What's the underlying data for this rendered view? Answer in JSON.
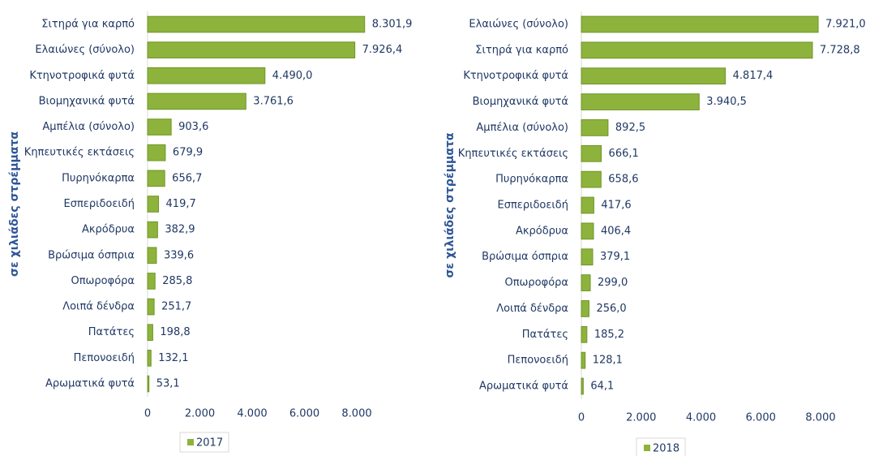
{
  "chart_data": [
    {
      "type": "bar",
      "y_label": "σε χιλιάδες στρέμματα",
      "categories": [
        "Σιτηρά για καρπό",
        "Ελαιώνες (σύνολο)",
        "Κτηνοτροφικά φυτά",
        "Βιομηχανικά φυτά",
        "Αμπέλια  (σύνολο)",
        "Κηπευτικές εκτάσεις",
        "Πυρηνόκαρπα",
        "Εσπεριδοειδή",
        "Ακρόδρυα",
        "Βρώσιμα όσπρια",
        "Οπωροφόρα",
        "Λοιπά δένδρα",
        "Πατάτες",
        "Πεπονοειδή",
        "Αρωματικά φυτά"
      ],
      "series": [
        {
          "name": "2017",
          "color": "#8db33c",
          "values": [
            8301.9,
            7926.4,
            4490.0,
            3761.6,
            903.6,
            679.9,
            656.7,
            419.7,
            382.9,
            339.6,
            285.8,
            251.7,
            198.8,
            132.1,
            53.1
          ],
          "value_labels": [
            "8.301,9",
            "7.926,4",
            "4.490,0",
            "3.761,6",
            "903,6",
            "679,9",
            "656,7",
            "419,7",
            "382,9",
            "339,6",
            "285,8",
            "251,7",
            "198,8",
            "132,1",
            "53,1"
          ]
        }
      ],
      "xlim": [
        0,
        8000
      ],
      "xticks": [
        0,
        {
          "value": 2000,
          "label": "2.000"
        },
        {
          "value": 4000,
          "label": "4.000"
        },
        {
          "value": 6000,
          "label": "6.000"
        },
        {
          "value": 8000,
          "label": "8.000"
        }
      ]
    },
    {
      "type": "bar",
      "y_label": "σε χιλιάδες στρέμματα",
      "categories": [
        "Ελαιώνες (σύνολο)",
        "Σιτηρά για καρπό",
        "Κτηνοτροφικά φυτά",
        "Βιομηχανικά φυτά",
        "Αμπέλια  (σύνολο)",
        "Κηπευτικές εκτάσεις",
        "Πυρηνόκαρπα",
        "Εσπεριδοειδή",
        "Ακρόδρυα",
        "Βρώσιμα όσπρια",
        "Οπωροφόρα",
        "Λοιπά δένδρα",
        "Πατάτες",
        "Πεπονοειδή",
        "Αρωματικά φυτά"
      ],
      "series": [
        {
          "name": "2018",
          "color": "#8db33c",
          "values": [
            7921.0,
            7728.8,
            4817.4,
            3940.5,
            892.5,
            666.1,
            658.6,
            417.6,
            406.4,
            379.1,
            299.0,
            256.0,
            185.2,
            128.1,
            64.1
          ],
          "value_labels": [
            "7.921,0",
            "7.728,8",
            "4.817,4",
            "3.940,5",
            "892,5",
            "666,1",
            "658,6",
            "417,6",
            "406,4",
            "379,1",
            "299,0",
            "256,0",
            "185,2",
            "128,1",
            "64,1"
          ]
        }
      ],
      "xlim": [
        0,
        8000
      ],
      "xticks": [
        0,
        {
          "value": 2000,
          "label": "2.000"
        },
        {
          "value": 4000,
          "label": "4.000"
        },
        {
          "value": 6000,
          "label": "6.000"
        },
        {
          "value": 8000,
          "label": "8.000"
        }
      ]
    }
  ]
}
